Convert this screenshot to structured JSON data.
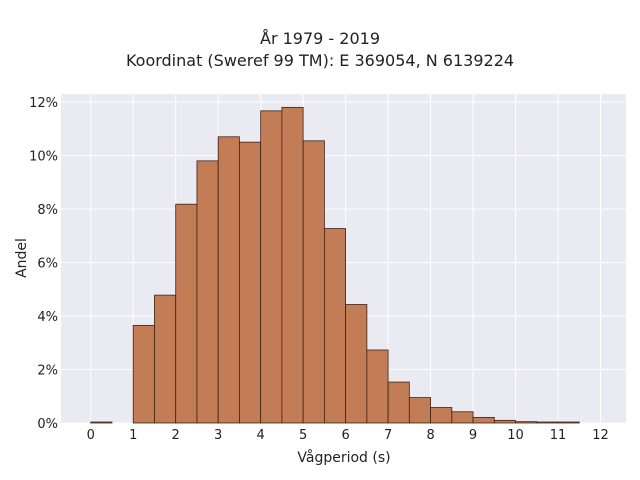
{
  "chart_data": {
    "type": "bar",
    "title": "År 1979 - 2019",
    "subtitle": "Koordinat (Sweref 99 TM): E 369054, N 6139224",
    "xlabel": "Vågperiod (s)",
    "ylabel": "Andel",
    "bin_width": 0.5,
    "bin_starts": [
      0,
      0.5,
      1,
      1.5,
      2,
      2.5,
      3,
      3.5,
      4,
      4.5,
      5,
      5.5,
      6,
      6.5,
      7,
      7.5,
      8,
      8.5,
      9,
      9.5,
      10,
      10.5,
      11,
      11.5
    ],
    "values": [
      0.02,
      0,
      3.65,
      4.78,
      8.18,
      9.8,
      10.7,
      10.5,
      11.67,
      11.8,
      10.55,
      7.27,
      4.43,
      2.73,
      1.53,
      0.95,
      0.58,
      0.42,
      0.21,
      0.1,
      0.05,
      0.02,
      0.01,
      0
    ],
    "value_unit": "%",
    "xlim": [
      -0.7,
      12.6
    ],
    "ylim": [
      0,
      12.3
    ],
    "xticks": [
      0,
      1,
      2,
      3,
      4,
      5,
      6,
      7,
      8,
      9,
      10,
      11,
      12
    ],
    "yticks": [
      0,
      2,
      4,
      6,
      8,
      10,
      12
    ],
    "ytick_labels": [
      "0%",
      "2%",
      "4%",
      "6%",
      "8%",
      "10%",
      "12%"
    ],
    "grid": true,
    "colors": {
      "bar_fill": "#c27c56",
      "bar_edge": "#3d2315",
      "plot_background": "#eaeaf2",
      "grid": "#ffffff"
    }
  }
}
